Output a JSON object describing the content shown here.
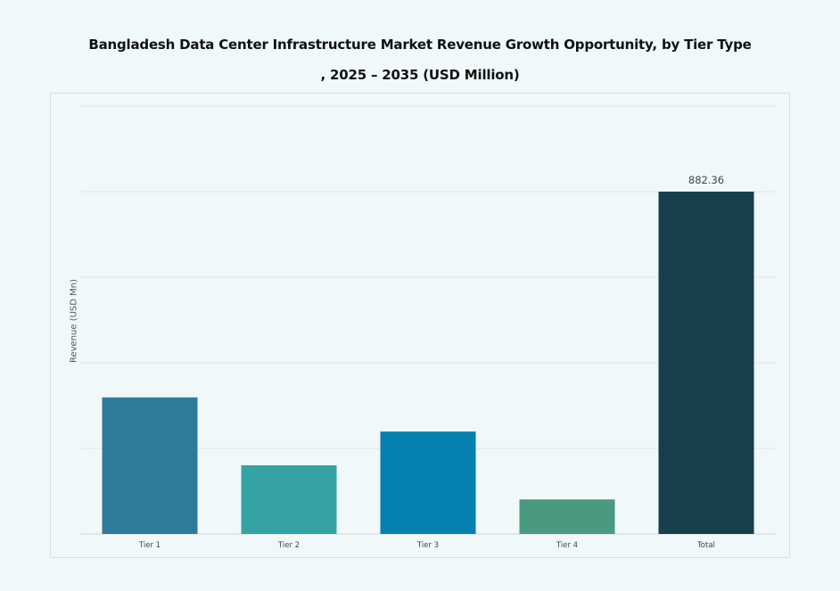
{
  "chart_data": {
    "type": "bar",
    "title_line1": "Bangladesh Data Center Infrastructure Market Revenue Growth Opportunity, by Tier Type",
    "title_line2": ", 2025 – 2035 (USD Million)",
    "xlabel": "",
    "ylabel": "Revenue (USD Mn)",
    "categories": [
      "Tier 1",
      "Tier 2",
      "Tier 3",
      "Tier 4",
      "Total"
    ],
    "values": [
      352,
      177,
      264,
      89,
      882.36
    ],
    "data_labels": {
      "Total": "882.36"
    },
    "colors": [
      "#2e7b99",
      "#35a3a3",
      "#0680b0",
      "#4a9a80",
      "#173e4b"
    ],
    "ylim": [
      0,
      1103
    ],
    "grid": true,
    "legend": "none"
  }
}
